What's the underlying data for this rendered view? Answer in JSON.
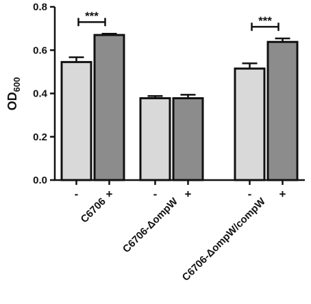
{
  "chart_data": {
    "type": "bar",
    "ylabel": "OD",
    "ylabel_subscript": "600",
    "ylim": [
      0,
      0.8
    ],
    "yticks": [
      "0.0",
      "0.2",
      "0.4",
      "0.6",
      "0.8"
    ],
    "groups": [
      {
        "name": "C6706",
        "labels": [
          "-",
          "+"
        ],
        "values": [
          0.545,
          0.67
        ],
        "errors": [
          0.022,
          0.006
        ],
        "significance": "***"
      },
      {
        "name": "C6706-ΔompW",
        "labels": [
          "-",
          "+"
        ],
        "values": [
          0.378,
          0.378
        ],
        "errors": [
          0.01,
          0.016
        ],
        "significance": ""
      },
      {
        "name": "C6706-ΔompW/compW",
        "labels": [
          "-",
          "+"
        ],
        "values": [
          0.515,
          0.638
        ],
        "errors": [
          0.024,
          0.016
        ],
        "significance": "***"
      }
    ],
    "colors": {
      "minus": "#d9d9d9",
      "plus": "#8c8c8c",
      "stroke": "#111111"
    },
    "grid": false,
    "legend": "none"
  }
}
